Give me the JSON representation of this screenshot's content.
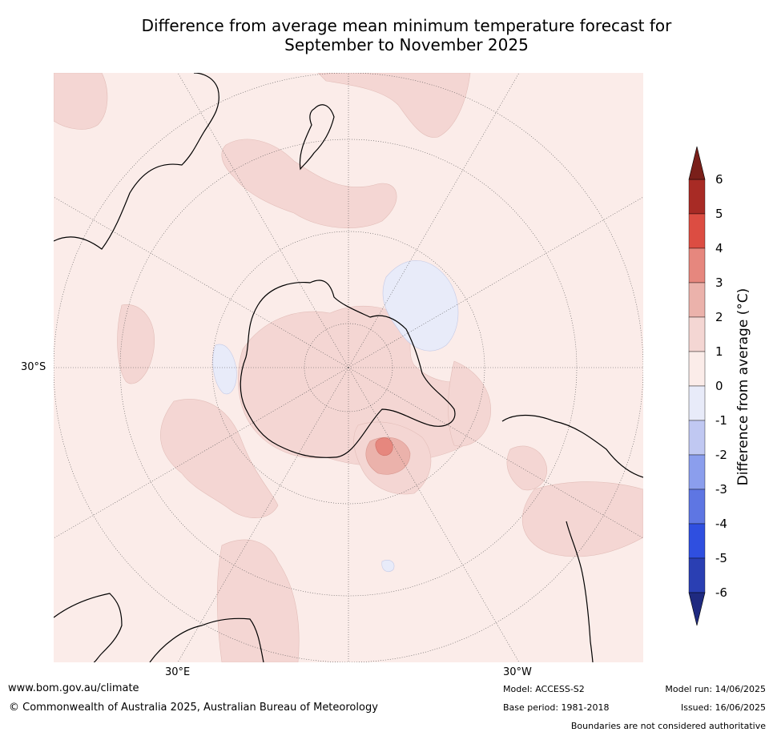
{
  "title_line1": "Difference from average mean minimum temperature forecast for",
  "title_line2": "September to November 2025",
  "map": {
    "lat_label": "30°S",
    "lon_labels": [
      "30°E",
      "30°W"
    ],
    "colors": {
      "ocean_background": "#fbece9",
      "anomaly_0_1": "#fbece9",
      "anomaly_1_2": "#f4d6d3",
      "anomaly_2_3": "#ebb2ab",
      "anomaly_3_4": "#e6877e",
      "anomaly_neg1_0": "#e8ebf9",
      "coastline": "#000000",
      "graticule": "#555555"
    }
  },
  "colorbar": {
    "title": "Difference from average (°C)",
    "tick_labels": [
      "6",
      "5",
      "4",
      "3",
      "2",
      "1",
      "0",
      "-1",
      "-2",
      "-3",
      "-4",
      "-5",
      "-6"
    ],
    "bins": [
      {
        "range": "5 to 6",
        "color": "#a82b25"
      },
      {
        "range": "4 to 5",
        "color": "#dc4d42"
      },
      {
        "range": "3 to 4",
        "color": "#e6877e"
      },
      {
        "range": "2 to 3",
        "color": "#ebb2ab"
      },
      {
        "range": "1 to 2",
        "color": "#f4d6d3"
      },
      {
        "range": "0 to 1",
        "color": "#fbece9"
      },
      {
        "range": "-1 to 0",
        "color": "#e8ebf9"
      },
      {
        "range": "-2 to -1",
        "color": "#c0c8f2"
      },
      {
        "range": "-3 to -2",
        "color": "#8b9eed"
      },
      {
        "range": "-4 to -3",
        "color": "#5e76e3"
      },
      {
        "range": "-5 to -4",
        "color": "#2f4fe0"
      },
      {
        "range": "-6 to -5",
        "color": "#2a3fb3"
      }
    ],
    "over_color": "#7a1f1a",
    "under_color": "#1f2a80"
  },
  "footer": {
    "url": "www.bom.gov.au/climate",
    "copyright": "© Commonwealth of Australia 2025, Australian Bureau of Meteorology",
    "model": "Model: ACCESS-S2",
    "base_period": "Base period: 1981-2018",
    "model_run": "Model run: 14/06/2025",
    "issued": "Issued: 16/06/2025",
    "disclaimer": "Boundaries are not considered authoritative"
  }
}
